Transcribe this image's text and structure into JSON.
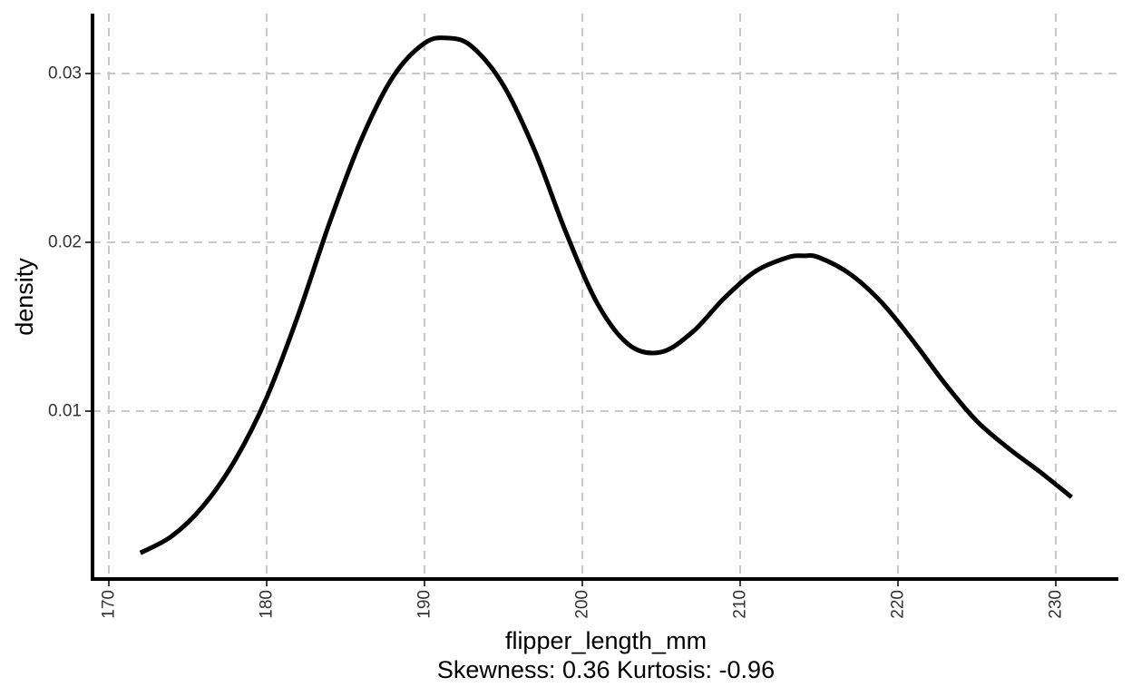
{
  "chart_data": {
    "type": "line",
    "xlabel": "flipper_length_mm",
    "ylabel": "density",
    "caption": "Skewness: 0.36 Kurtosis: -0.96",
    "xlim": [
      169,
      234
    ],
    "ylim": [
      0.0,
      0.0335
    ],
    "x_ticks": [
      170,
      180,
      190,
      200,
      210,
      220,
      230
    ],
    "y_ticks": [
      0.01,
      0.02,
      0.03
    ],
    "grid": true,
    "grid_style": "dashed",
    "line_color": "#000000",
    "x": [
      172,
      174,
      176,
      178,
      180,
      182,
      184,
      186,
      188,
      190,
      191.5,
      193,
      195,
      197,
      199,
      201,
      203,
      205,
      207,
      209,
      211,
      213,
      214,
      215,
      217,
      219,
      221,
      223,
      225,
      227,
      229,
      231
    ],
    "y": [
      0.0016,
      0.0026,
      0.0044,
      0.0071,
      0.0108,
      0.0157,
      0.0212,
      0.0261,
      0.0298,
      0.0318,
      0.0321,
      0.0316,
      0.0293,
      0.0254,
      0.0205,
      0.0163,
      0.0139,
      0.0135,
      0.0147,
      0.0167,
      0.0183,
      0.0191,
      0.0192,
      0.0191,
      0.0181,
      0.0164,
      0.0141,
      0.0116,
      0.0094,
      0.0078,
      0.0064,
      0.0049
    ]
  }
}
